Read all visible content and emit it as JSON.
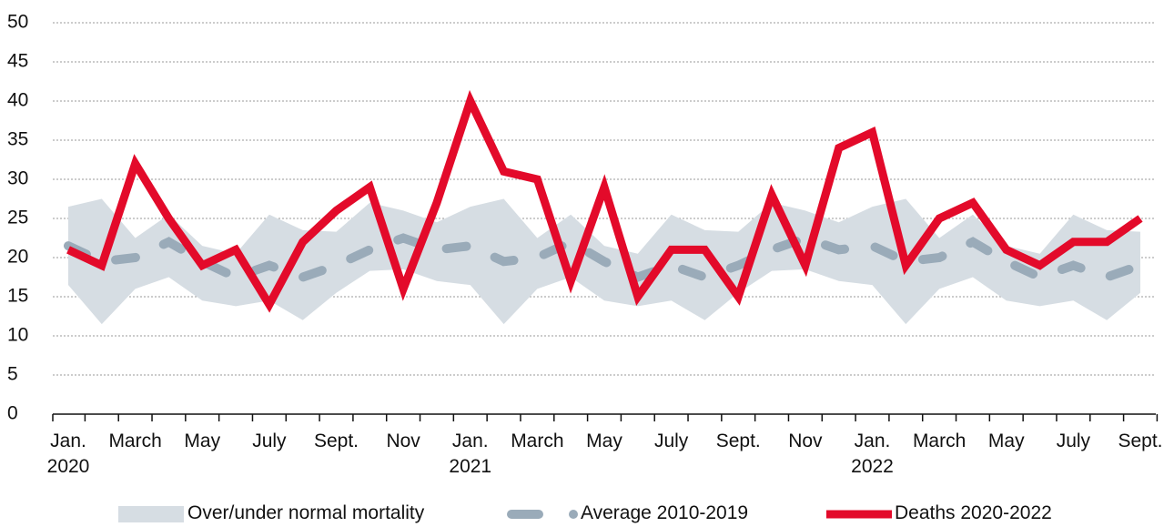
{
  "chart_data": {
    "type": "line",
    "categories": [
      "Jan. 2020",
      null,
      "March",
      null,
      "May",
      null,
      "July",
      null,
      "Sept.",
      null,
      "Nov",
      null,
      "Jan. 2021",
      null,
      "March",
      null,
      "May",
      null,
      "July",
      null,
      "Sept.",
      null,
      "Nov",
      null,
      "Jan. 2022",
      null,
      "March",
      null,
      "May",
      null,
      "July",
      null,
      "Sept."
    ],
    "ylim": [
      0,
      50
    ],
    "yticks": [
      0,
      5,
      10,
      15,
      20,
      25,
      30,
      35,
      40,
      45,
      50
    ],
    "grid": true,
    "legend": "bottom",
    "band": {
      "name": "Over/under normal mortality",
      "color": "#d6dde3",
      "upper": [
        26.5,
        27.5,
        22.5,
        25.5,
        21.5,
        20.5,
        25.5,
        23.5,
        23.3,
        27,
        26,
        24.5,
        26.5,
        27.5,
        22.5,
        25.5,
        21.5,
        20.5,
        25.5,
        23.5,
        23.3,
        27,
        26,
        24.5,
        26.5,
        27.5,
        22.5,
        25.5,
        21.5,
        20.5,
        25.5,
        23.5,
        23.3
      ],
      "lower": [
        16.5,
        11.5,
        16,
        17.5,
        14.5,
        13.8,
        14.5,
        12,
        15.5,
        18.3,
        18.5,
        17,
        16.5,
        11.5,
        16,
        17.5,
        14.5,
        13.8,
        14.5,
        12,
        15.5,
        18.3,
        18.5,
        17,
        16.5,
        11.5,
        16,
        17.5,
        14.5,
        13.8,
        14.5,
        12,
        15.5
      ]
    },
    "series": [
      {
        "name": "Average 2010-2019",
        "color": "#9aabb9",
        "dashed": true,
        "values": [
          21.5,
          19.5,
          20,
          22,
          19.5,
          17.5,
          19,
          17.5,
          19,
          21,
          22.5,
          21,
          21.5,
          19.5,
          20,
          22,
          19.5,
          17.5,
          19,
          17.5,
          19,
          21,
          22.5,
          21,
          21.5,
          19.5,
          20,
          22,
          19.5,
          17.5,
          19,
          17.5,
          19
        ]
      },
      {
        "name": "Deaths 2020-2022",
        "color": "#e30a2a",
        "dashed": false,
        "values": [
          21,
          19,
          32,
          25,
          19,
          21,
          14,
          22,
          26,
          29,
          16,
          27,
          40,
          31,
          30,
          17,
          29,
          15,
          21,
          21,
          15,
          28,
          19,
          34,
          36,
          19,
          25,
          27,
          21,
          19,
          22,
          22,
          25
        ]
      }
    ]
  }
}
